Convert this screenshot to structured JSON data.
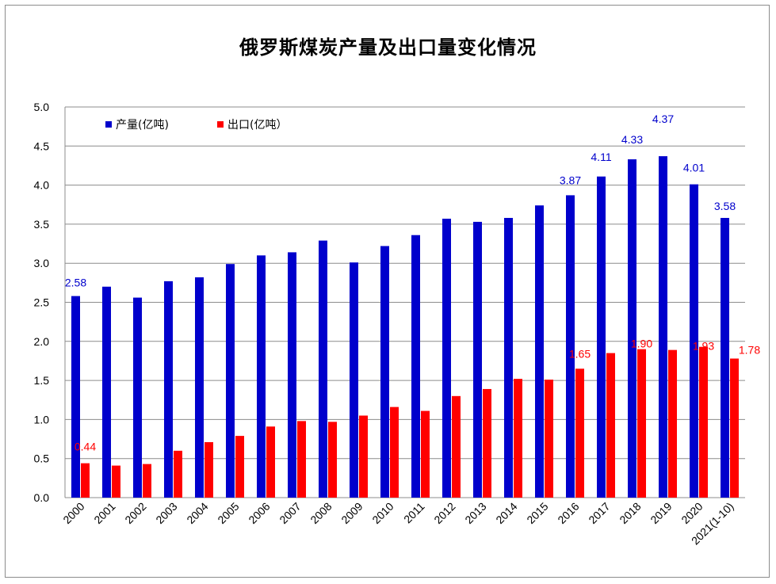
{
  "chart_data": {
    "type": "bar",
    "title": "俄罗斯煤炭产量及出口量变化情况",
    "categories": [
      "2000",
      "2001",
      "2002",
      "2003",
      "2004",
      "2005",
      "2006",
      "2007",
      "2008",
      "2009",
      "2010",
      "2011",
      "2012",
      "2013",
      "2014",
      "2015",
      "2016",
      "2017",
      "2018",
      "2019",
      "2020",
      "2021(1-10)"
    ],
    "series": [
      {
        "name": "产量(亿吨)",
        "color": "#0000CC",
        "values": [
          2.58,
          2.7,
          2.56,
          2.77,
          2.82,
          2.99,
          3.1,
          3.14,
          3.29,
          3.01,
          3.22,
          3.36,
          3.57,
          3.53,
          3.58,
          3.74,
          3.87,
          4.11,
          4.33,
          4.37,
          4.01,
          3.58
        ],
        "labels": {
          "0": "2.58",
          "16": "3.87",
          "17": "4.11",
          "18": "4.33",
          "19": "4.37",
          "20": "4.01",
          "21": "3.58"
        }
      },
      {
        "name": "出口(亿吨）",
        "color": "#FF0000",
        "values": [
          0.44,
          0.41,
          0.43,
          0.6,
          0.71,
          0.79,
          0.91,
          0.98,
          0.97,
          1.05,
          1.16,
          1.11,
          1.3,
          1.39,
          1.52,
          1.51,
          1.65,
          1.85,
          1.9,
          1.89,
          1.93,
          1.78
        ],
        "labels": {
          "0": "0.44",
          "16": "1.65",
          "18": "1.90",
          "20": "1.93",
          "21": "1.78"
        }
      }
    ],
    "ylim": [
      0,
      5.0
    ],
    "yticks": [
      "0.0",
      "0.5",
      "1.0",
      "1.5",
      "2.0",
      "2.5",
      "3.0",
      "3.5",
      "4.0",
      "4.5",
      "5.0"
    ],
    "grid": true,
    "legend": "top-left"
  }
}
